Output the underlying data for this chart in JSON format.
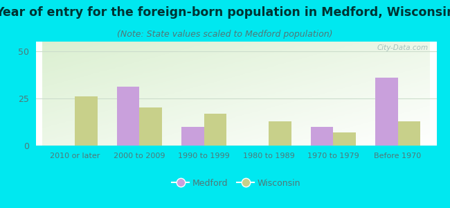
{
  "title": "Year of entry for the foreign-born population in Medford, Wisconsin",
  "subtitle": "(Note: State values scaled to Medford population)",
  "categories": [
    "2010 or later",
    "2000 to 2009",
    "1990 to 1999",
    "1980 to 1989",
    "1970 to 1979",
    "Before 1970"
  ],
  "medford_values": [
    0,
    31,
    10,
    0,
    10,
    36
  ],
  "wisconsin_values": [
    26,
    20,
    17,
    13,
    7,
    13
  ],
  "medford_color": "#c9a0dc",
  "wisconsin_color": "#c8d08a",
  "background_color": "#00e8f0",
  "ylim": [
    0,
    55
  ],
  "yticks": [
    0,
    25,
    50
  ],
  "bar_width": 0.35,
  "title_fontsize": 12.5,
  "subtitle_fontsize": 9,
  "legend_labels": [
    "Medford",
    "Wisconsin"
  ],
  "tick_label_color": "#507878",
  "title_color": "#003333",
  "subtitle_color": "#507878",
  "watermark": "City-Data.com"
}
